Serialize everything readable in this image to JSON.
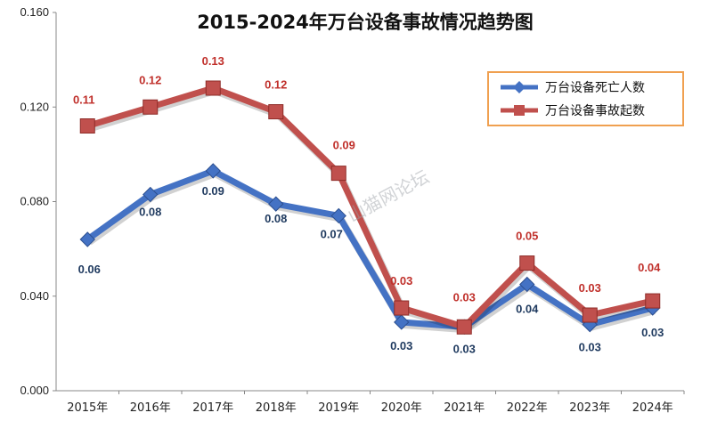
{
  "chart_data": {
    "type": "line",
    "title": "2015-2024年万台设备事故情况趋势图",
    "categories": [
      "2015年",
      "2016年",
      "2017年",
      "2018年",
      "2019年",
      "2020年",
      "2021年",
      "2022年",
      "2023年",
      "2024年"
    ],
    "ylim": [
      0,
      0.16
    ],
    "yticks": [
      "0.000",
      "0.040",
      "0.080",
      "0.120",
      "0.160"
    ],
    "ytick_values": [
      0,
      0.04,
      0.08,
      0.12,
      0.16
    ],
    "series": [
      {
        "name": "万台设备死亡人数",
        "color": "#4472c4",
        "marker": "diamond",
        "values": [
          0.064,
          0.083,
          0.093,
          0.079,
          0.074,
          0.029,
          0.027,
          0.045,
          0.028,
          0.035
        ],
        "labels": [
          "0.06",
          "0.08",
          "0.09",
          "0.08",
          "0.07",
          "0.03",
          "0.03",
          "0.04",
          "0.03",
          "0.03"
        ]
      },
      {
        "name": "万台设备事故起数",
        "color": "#c0504d",
        "marker": "square",
        "values": [
          0.112,
          0.12,
          0.128,
          0.118,
          0.092,
          0.035,
          0.027,
          0.054,
          0.032,
          0.038
        ],
        "labels": [
          "0.11",
          "0.12",
          "0.13",
          "0.12",
          "0.09",
          "0.03",
          "0.03",
          "0.05",
          "0.03",
          "0.04"
        ]
      }
    ],
    "legend_position": "top-right",
    "legend_border_color": "#f0a050"
  },
  "watermark": "山猫网论坛"
}
